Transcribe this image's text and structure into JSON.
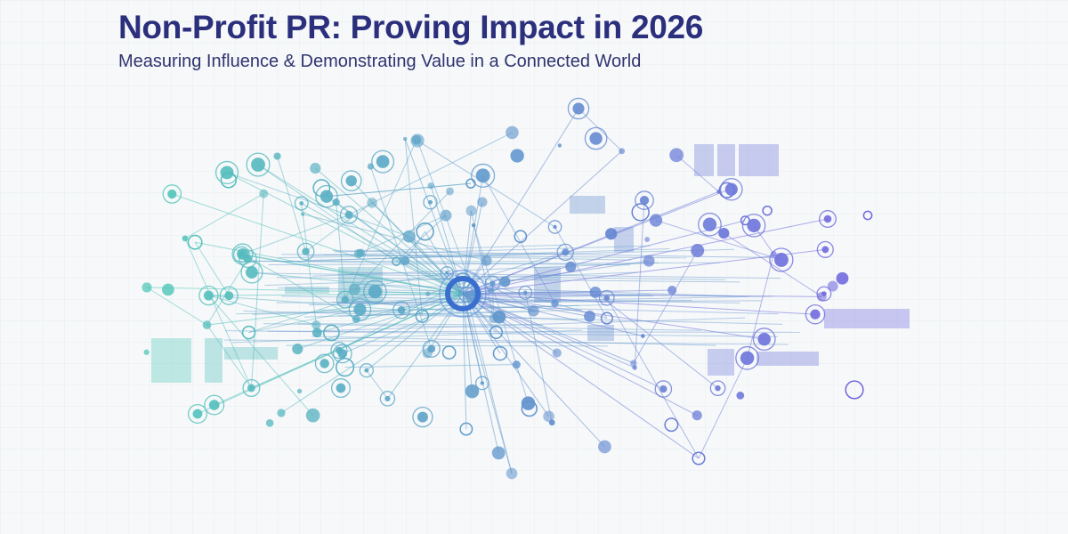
{
  "header": {
    "title": "Non-Profit PR: Proving Impact in 2026",
    "subtitle": "Measuring Influence & Demonstrating Value in a Connected World"
  }
}
